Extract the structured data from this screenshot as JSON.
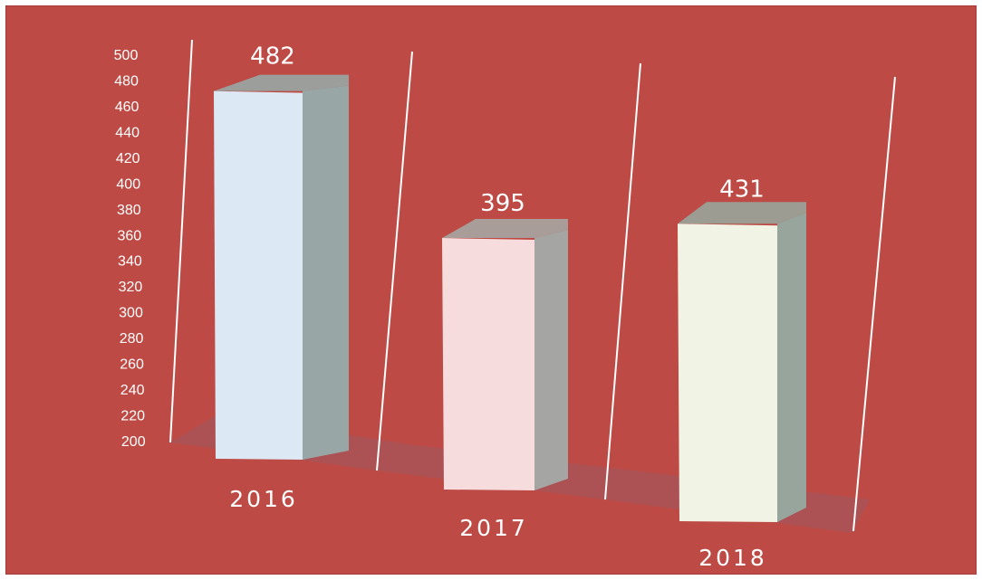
{
  "chart_data": {
    "type": "bar",
    "categories": [
      "2016",
      "2017",
      "2018"
    ],
    "values": [
      482,
      395,
      431
    ],
    "ylim": [
      200,
      500
    ],
    "yticks": [
      200,
      220,
      240,
      260,
      280,
      300,
      320,
      340,
      360,
      380,
      400,
      420,
      440,
      460,
      480,
      500
    ],
    "grid": false,
    "legend": "none",
    "colors": {
      "background": "#bd4a44",
      "bars": [
        "#dce8f4",
        "#f6dcdc",
        "#f1f4e4"
      ],
      "bar_sides": [
        "#98a7a6",
        "#a5a6a3",
        "#98a59c"
      ],
      "floor": "#9e5a62"
    }
  }
}
